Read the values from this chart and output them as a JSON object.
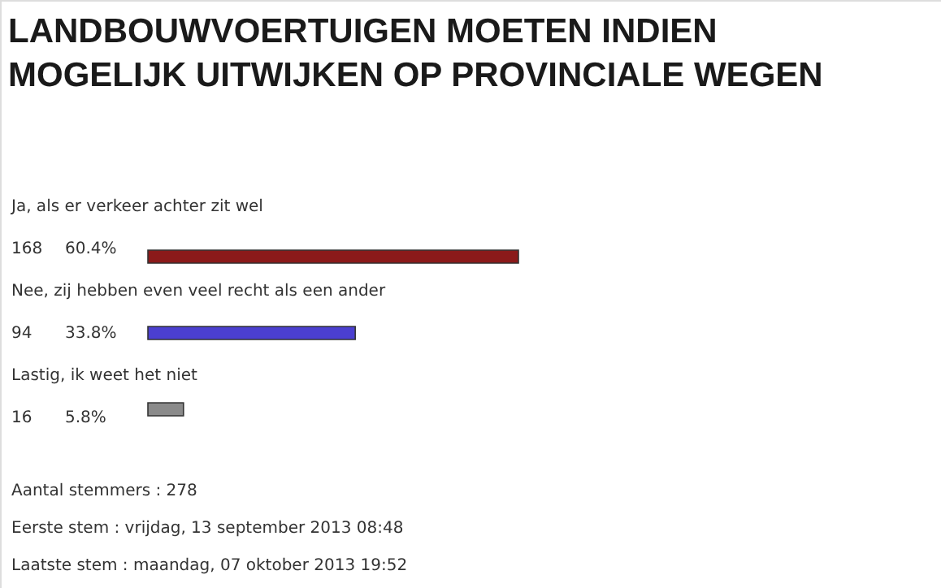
{
  "chart_data": {
    "type": "bar",
    "orientation": "horizontal",
    "title": "LANDBOUWVOERTUIGEN MOETEN INDIEN MOGELIJK UITWIJKEN OP PROVINCIALE WEGEN",
    "categories": [
      "Ja, als er verkeer achter zit wel",
      "Nee, zij hebben even veel recht als een ander",
      "Lastig, ik weet het niet"
    ],
    "values": [
      60.4,
      33.8,
      5.8
    ],
    "value_labels": [
      "60.4%",
      "33.8%",
      "5.8%"
    ],
    "colors": [
      "#8b1a1a",
      "#4b3fd0",
      "#8a8a8a"
    ],
    "annotations": [
      "168",
      "94",
      "16",
      "Aantal stemmers : 278",
      "Eerste stem : vrijdag, 13 september 2013 08:48",
      "Laatste stem : maandag, 07 oktober 2013 19:52"
    ]
  }
}
